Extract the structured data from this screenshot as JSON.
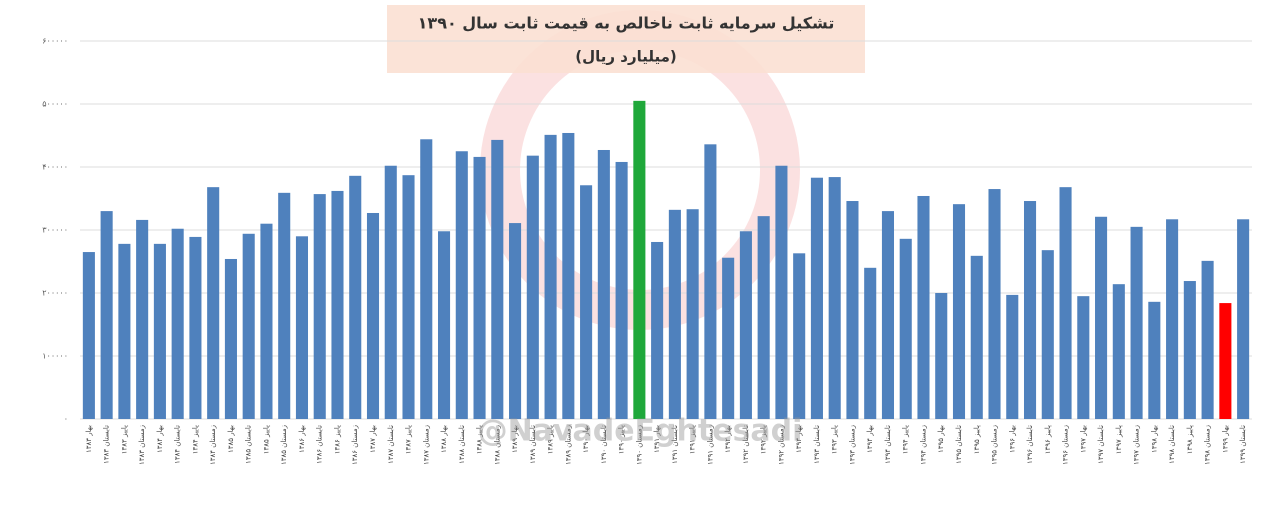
{
  "chart_data": {
    "type": "bar",
    "title": "تشکیل سرمایه ثابت ناخالص به قیمت ثابت سال ۱۳۹۰",
    "subtitle": "(میلیارد ریال)",
    "watermark": "@NavadeEghtesadi",
    "categories": [
      "۱۳۸۳ بهار",
      "۱۳۸۳ تابستان",
      "۱۳۸۳ پاییز",
      "۱۳۸۳ زمستان",
      "۱۳۸۴ بهار",
      "۱۳۸۴ تابستان",
      "۱۳۸۴ پاییز",
      "۱۳۸۴ زمستان",
      "۱۳۸۵ بهار",
      "۱۳۸۵ تابستان",
      "۱۳۸۵ پاییز",
      "۱۳۸۵ زمستان",
      "۱۳۸۶ بهار",
      "۱۳۸۶ تابستان",
      "۱۳۸۶ پاییز",
      "۱۳۸۶ زمستان",
      "۱۳۸۷ بهار",
      "۱۳۸۷ تابستان",
      "۱۳۸۷ پاییز",
      "۱۳۸۷ زمستان",
      "۱۳۸۸ بهار",
      "۱۳۸۸ تابستان",
      "۱۳۸۸ پاییز",
      "۱۳۸۸ زمستان",
      "۱۳۸۹ بهار",
      "۱۳۸۹ تابستان",
      "۱۳۸۹ پاییز",
      "۱۳۸۹ زمستان",
      "۱۳۹۰ بهار",
      "۱۳۹۰ تابستان",
      "۱۳۹۰ پاییز",
      "۱۳۹۰ زمستان",
      "۱۳۹۱ بهار",
      "۱۳۹۱ تابستان",
      "۱۳۹۱ پاییز",
      "۱۳۹۱ زمستان",
      "۱۳۹۲ بهار",
      "۱۳۹۲ تابستان",
      "۱۳۹۲ پاییز",
      "۱۳۹۲ زمستان",
      "۱۳۹۳ بهار",
      "۱۳۹۳ تابستان",
      "۱۳۹۳ پاییز",
      "۱۳۹۳ زمستان",
      "۱۳۹۴ بهار",
      "۱۳۹۴ تابستان",
      "۱۳۹۴ پاییز",
      "۱۳۹۴ زمستان",
      "۱۳۹۵ بهار",
      "۱۳۹۵ تابستان",
      "۱۳۹۵ پاییز",
      "۱۳۹۵ زمستان",
      "۱۳۹۶ بهار",
      "۱۳۹۶ تابستان",
      "۱۳۹۶ پاییز",
      "۱۳۹۶ زمستان",
      "۱۳۹۷ بهار",
      "۱۳۹۷ تابستان",
      "۱۳۹۷ پاییز",
      "۱۳۹۷ زمستان",
      "۱۳۹۸ بهار",
      "۱۳۹۸ تابستان",
      "۱۳۹۸ پاییز",
      "۱۳۹۸ زمستان",
      "۱۳۹۹ بهار",
      "۱۳۹۹ تابستان"
    ],
    "values": [
      265000,
      330000,
      278000,
      316000,
      278000,
      302000,
      289000,
      368000,
      254000,
      294000,
      310000,
      359000,
      290000,
      357000,
      362000,
      386000,
      327000,
      402000,
      387000,
      444000,
      298000,
      425000,
      416000,
      443000,
      311000,
      418000,
      451000,
      454000,
      371000,
      427000,
      408000,
      505000,
      281000,
      332000,
      333000,
      436000,
      256000,
      298000,
      322000,
      402000,
      263000,
      383000,
      384000,
      346000,
      240000,
      330000,
      286000,
      354000,
      200000,
      341000,
      259000,
      365000,
      197000,
      346000,
      268000,
      368000,
      195000,
      321000,
      214000,
      305000,
      186000,
      317000,
      219000,
      251000,
      184000,
      317000
    ],
    "colors": [
      "#4f81bd",
      "#4f81bd",
      "#4f81bd",
      "#4f81bd",
      "#4f81bd",
      "#4f81bd",
      "#4f81bd",
      "#4f81bd",
      "#4f81bd",
      "#4f81bd",
      "#4f81bd",
      "#4f81bd",
      "#4f81bd",
      "#4f81bd",
      "#4f81bd",
      "#4f81bd",
      "#4f81bd",
      "#4f81bd",
      "#4f81bd",
      "#4f81bd",
      "#4f81bd",
      "#4f81bd",
      "#4f81bd",
      "#4f81bd",
      "#4f81bd",
      "#4f81bd",
      "#4f81bd",
      "#4f81bd",
      "#4f81bd",
      "#4f81bd",
      "#4f81bd",
      "#1fa83a",
      "#4f81bd",
      "#4f81bd",
      "#4f81bd",
      "#4f81bd",
      "#4f81bd",
      "#4f81bd",
      "#4f81bd",
      "#4f81bd",
      "#4f81bd",
      "#4f81bd",
      "#4f81bd",
      "#4f81bd",
      "#4f81bd",
      "#4f81bd",
      "#4f81bd",
      "#4f81bd",
      "#4f81bd",
      "#4f81bd",
      "#4f81bd",
      "#4f81bd",
      "#4f81bd",
      "#4f81bd",
      "#4f81bd",
      "#4f81bd",
      "#4f81bd",
      "#4f81bd",
      "#4f81bd",
      "#4f81bd",
      "#4f81bd",
      "#4f81bd",
      "#4f81bd",
      "#4f81bd",
      "#ff0000",
      "#4f81bd"
    ],
    "ylim": [
      0,
      600000
    ],
    "yticks": [
      {
        "value": 0,
        "label": "۰"
      },
      {
        "value": 100000,
        "label": "۱۰۰۰۰۰"
      },
      {
        "value": 200000,
        "label": "۲۰۰۰۰۰"
      },
      {
        "value": 300000,
        "label": "۳۰۰۰۰۰"
      },
      {
        "value": 400000,
        "label": "۴۰۰۰۰۰"
      },
      {
        "value": 500000,
        "label": "۵۰۰۰۰۰"
      },
      {
        "value": 600000,
        "label": "۶۰۰۰۰۰"
      }
    ],
    "grid": true
  }
}
